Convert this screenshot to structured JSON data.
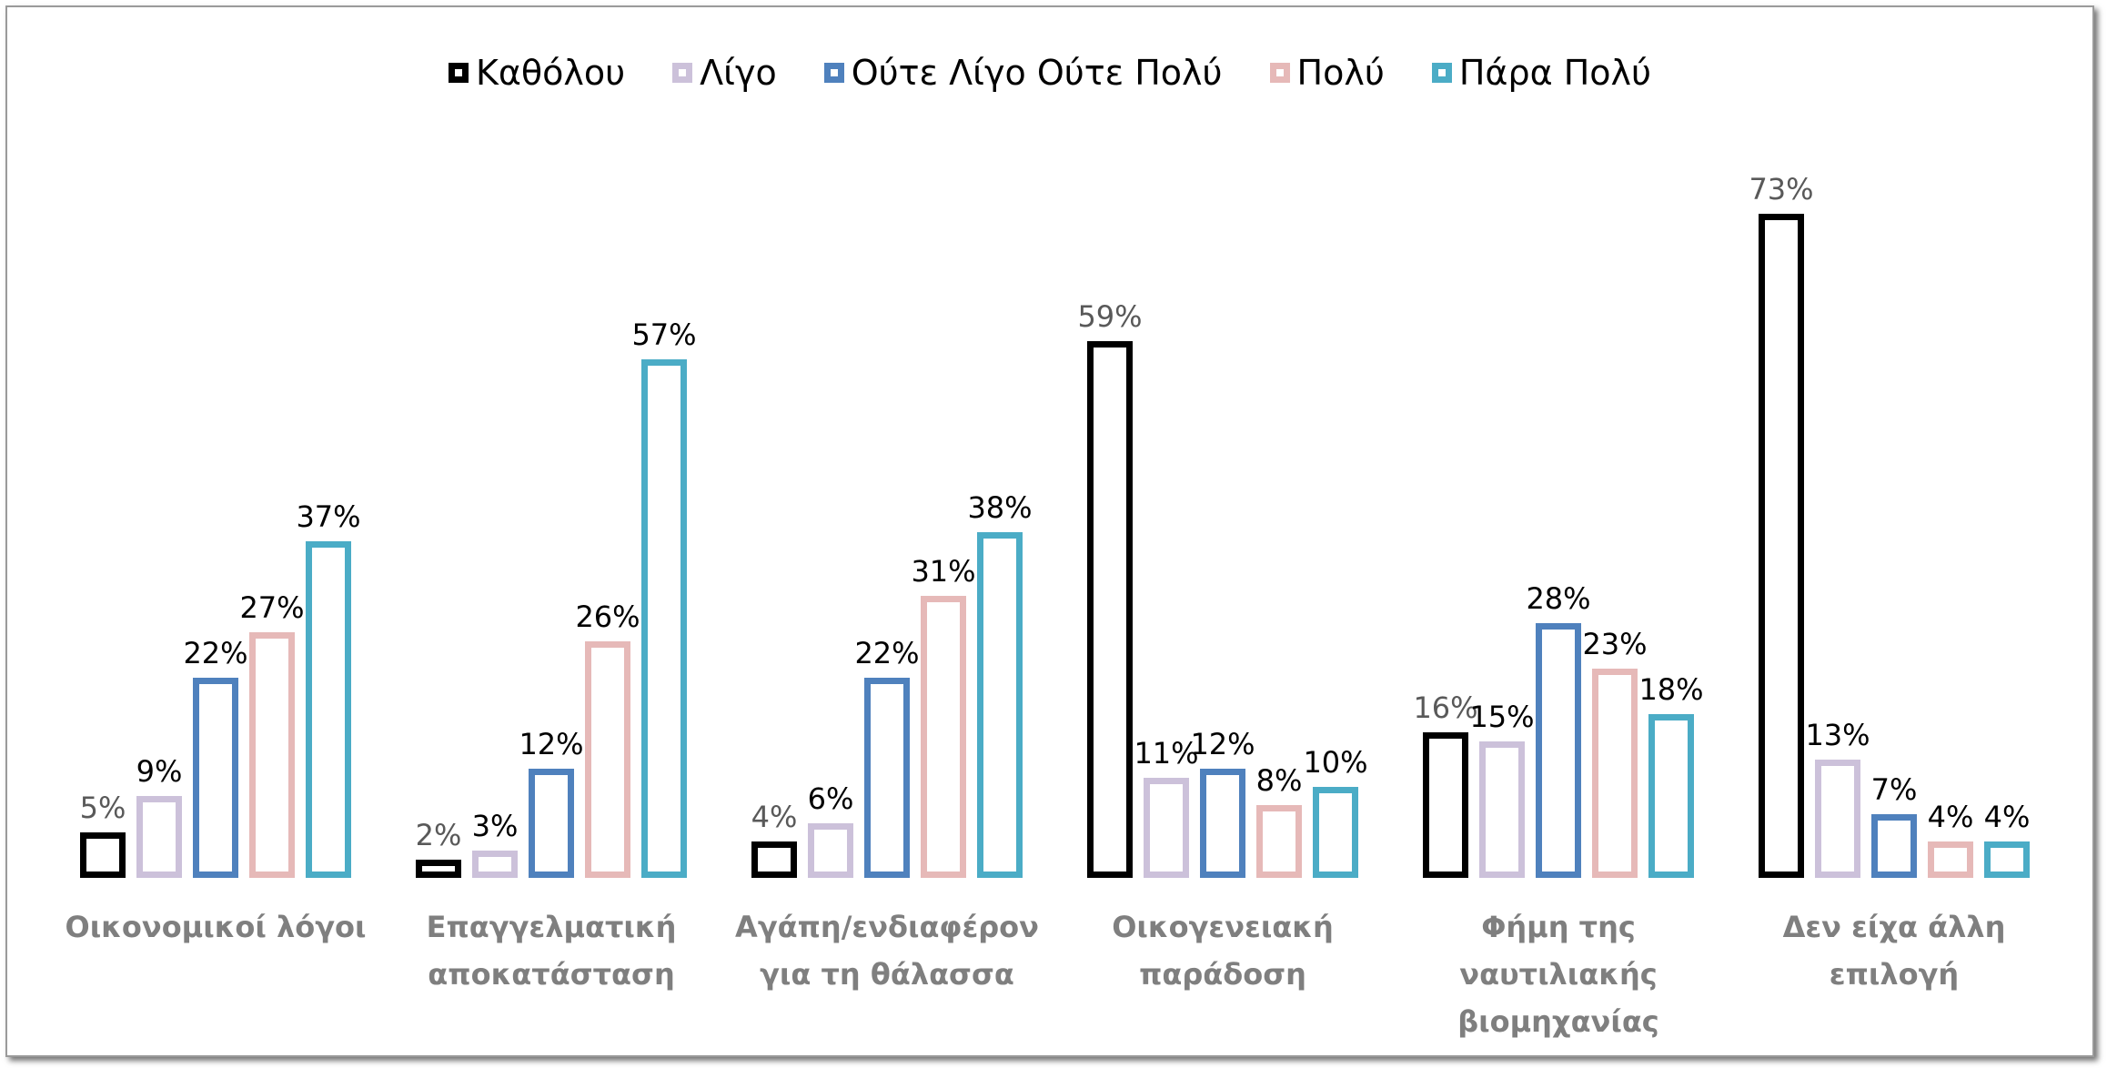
{
  "chart_data": {
    "type": "bar",
    "categories": [
      [
        "Οικονομικοί λόγοι"
      ],
      [
        "Επαγγελματική",
        "αποκατάσταση"
      ],
      [
        "Αγάπη/ενδιαφέρον",
        "για τη θάλασσα"
      ],
      [
        "Οικογενειακή",
        "παράδοση"
      ],
      [
        "Φήμη της",
        "ναυτιλιακής",
        "βιομηχανίας"
      ],
      [
        "Δεν είχα άλλη",
        "επιλογή"
      ]
    ],
    "series": [
      {
        "name": "Καθόλου",
        "color": "#000000",
        "values": [
          5,
          2,
          4,
          59,
          16,
          73
        ],
        "labels": [
          "5%",
          "2%",
          "4%",
          "59%",
          "16%",
          "73%"
        ]
      },
      {
        "name": "Λίγο",
        "color": "#ccc1da",
        "values": [
          9,
          3,
          6,
          11,
          15,
          13
        ],
        "labels": [
          "9%",
          "3%",
          "6%",
          "11%",
          "15%",
          "13%"
        ]
      },
      {
        "name": "Ούτε Λίγο Ούτε Πολύ",
        "color": "#4f81bd",
        "values": [
          22,
          12,
          22,
          12,
          28,
          7
        ],
        "labels": [
          "22%",
          "12%",
          "22%",
          "12%",
          "28%",
          "7%"
        ]
      },
      {
        "name": "Πολύ",
        "color": "#e6b9b8",
        "values": [
          27,
          26,
          31,
          8,
          23,
          4
        ],
        "labels": [
          "27%",
          "26%",
          "31%",
          "8%",
          "23%",
          "4%"
        ]
      },
      {
        "name": "Πάρα Πολύ",
        "color": "#4bacc6",
        "values": [
          37,
          57,
          38,
          10,
          18,
          4
        ],
        "labels": [
          "37%",
          "57%",
          "38%",
          "10%",
          "18%",
          "4%"
        ]
      }
    ],
    "first_series_label_color": "#595959",
    "other_label_color": "#000000",
    "ylim": [
      0,
      75
    ],
    "grid": false,
    "legend_position": "top",
    "xlabel": "",
    "ylabel": ""
  }
}
